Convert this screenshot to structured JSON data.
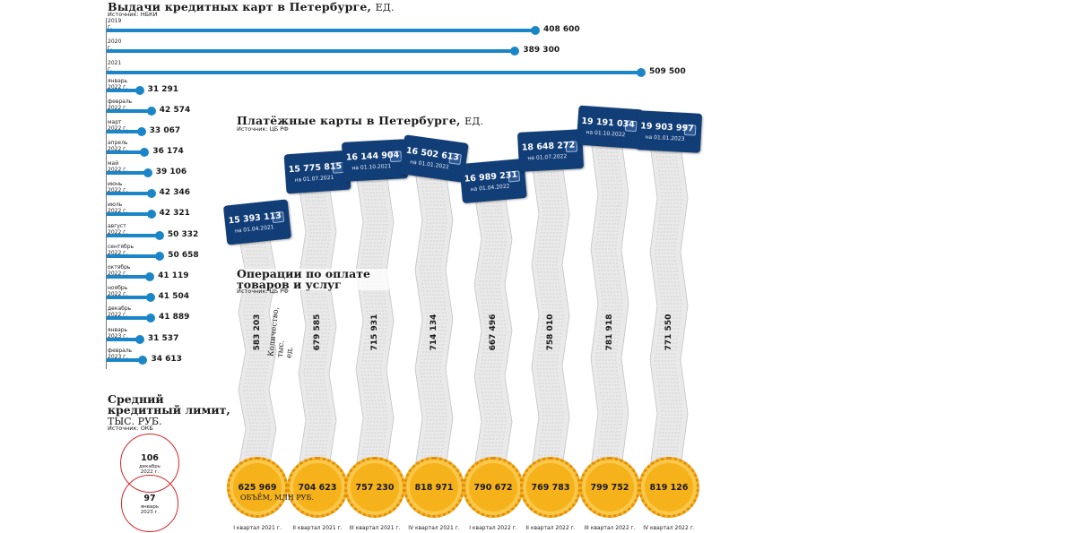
{
  "chart_data": [
    {
      "type": "bar",
      "title": "Выдачи кредитных карт в Петербурге,",
      "unit": "ЕД.",
      "source": "Источник: НБКИ",
      "categories": [
        "2019 г.",
        "2020 г.",
        "2021 г.",
        "январь 2022 г.",
        "февраль 2022 г.",
        "март 2022 г.",
        "апрель 2022 г.",
        "май 2022 г.",
        "июнь 2022 г.",
        "июль 2022 г.",
        "август 2022 г.",
        "сентябрь 2022 г.",
        "октябрь 2022 г.",
        "ноябрь 2022 г.",
        "декабрь 2022 г.",
        "январь 2023 г.",
        "февраль 2023 г."
      ],
      "values": [
        408600,
        389300,
        509500,
        31291,
        42574,
        33067,
        36174,
        39106,
        42346,
        42321,
        50332,
        50658,
        41119,
        41504,
        41889,
        31537,
        34613
      ],
      "value_labels": [
        "408 600",
        "389 300",
        "509 500",
        "31 291",
        "42 574",
        "33 067",
        "36 174",
        "39 106",
        "42 346",
        "42 321",
        "50 332",
        "50 658",
        "41 119",
        "41 504",
        "41 889",
        "31 537",
        "34 613"
      ],
      "bar_color": "#1a86c8"
    },
    {
      "type": "bar",
      "title": "Платёжные карты в Петербурге,",
      "unit": "ЕД.",
      "source": "Источник: ЦБ РФ",
      "categories": [
        "на 01.04.2021",
        "на 01.07.2021",
        "на 01.10.2021",
        "на 01.01.2022",
        "на 01.04.2022",
        "на 01.07.2022",
        "на 01.10.2022",
        "на 01.01.2023"
      ],
      "values": [
        15393113,
        15775815,
        16144904,
        16502613,
        16989231,
        18648272,
        19191034,
        19903997
      ],
      "value_labels": [
        "15 393 113",
        "15 775 815",
        "16 144 904",
        "16 502 613",
        "16 989 231",
        "18 648 272",
        "19 191 034",
        "19 903 997"
      ],
      "card_color": "#123e78"
    },
    {
      "type": "bar",
      "title": "Операции по оплате товаров и услуг",
      "source": "Источник: ЦБ РФ",
      "categories": [
        "I квартал 2021 г.",
        "II квартал 2021 г.",
        "III квартал 2021 г.",
        "IV квартал 2021 г.",
        "I квартал 2022 г.",
        "II квартал 2022 г.",
        "III квартал 2022 г.",
        "IV квартал 2022 г."
      ],
      "series": [
        {
          "name": "Количество, тыс. ед.",
          "values": [
            583203,
            679585,
            715931,
            714134,
            667496,
            758010,
            781918,
            771550
          ],
          "labels": [
            "583 203",
            "679 585",
            "715 931",
            "714 134",
            "667 496",
            "758 010",
            "781 918",
            "771 550"
          ]
        },
        {
          "name": "Объём, млн руб.",
          "values": [
            625969,
            704623,
            757230,
            818971,
            790672,
            769783,
            799752,
            819126
          ],
          "labels": [
            "625 969",
            "704 623",
            "757 230",
            "818 971",
            "790 672",
            "769 783",
            "799 752",
            "819 126"
          ]
        }
      ],
      "coin_color": "#f6b21b"
    },
    {
      "type": "bar",
      "title": "Средний кредитный лимит,",
      "unit": "ТЫС. РУБ.",
      "source": "Источник: ОКБ",
      "categories": [
        "декабрь 2022 г.",
        "январь 2023 г."
      ],
      "values": [
        106,
        97
      ],
      "ring_color": "#d6262b"
    }
  ]
}
